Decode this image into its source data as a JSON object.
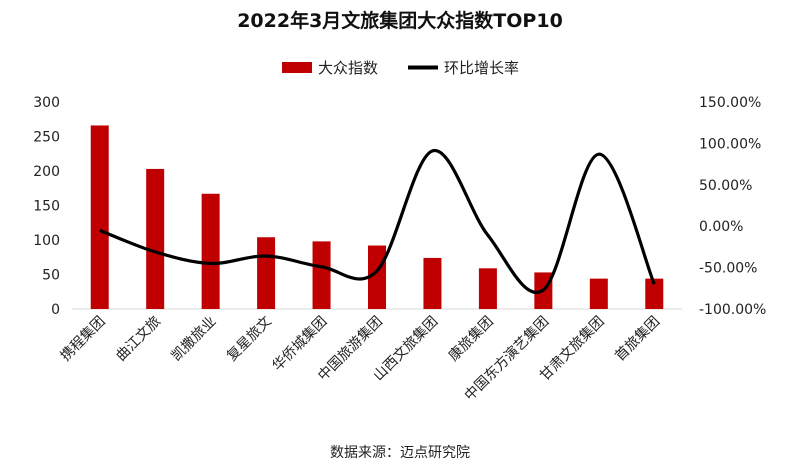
{
  "chart_data": {
    "type": "bar+line",
    "title": "2022年3月文旅集团大众指数TOP10",
    "categories": [
      "携程集团",
      "曲江文旅",
      "凯撒旅业",
      "复星旅文",
      "华侨城集团",
      "中国旅游集团",
      "山西文旅集团",
      "康旅集团",
      "中国东方演艺集团",
      "甘肃文旅集团",
      "首旅集团"
    ],
    "series": [
      {
        "name": "大众指数",
        "axis": "left",
        "kind": "bar",
        "color": "#c00000",
        "values": [
          266,
          203,
          167,
          104,
          98,
          92,
          74,
          59,
          53,
          44,
          44
        ]
      },
      {
        "name": "环比增长率",
        "axis": "right",
        "kind": "line",
        "color": "#000000",
        "unit": "%",
        "values": [
          -5,
          -31,
          -45,
          -36,
          -49,
          -54,
          91,
          -11,
          -77,
          87,
          -70
        ]
      }
    ],
    "y_left": {
      "min": 0,
      "max": 300,
      "ticks": [
        0,
        50,
        100,
        150,
        200,
        250,
        300
      ]
    },
    "y_right": {
      "min": -100,
      "max": 150,
      "ticks": [
        -100,
        -50,
        0,
        50,
        100,
        150
      ],
      "tick_labels": [
        "-100.00%",
        "-50.00%",
        "0.00%",
        "50.00%",
        "100.00%",
        "150.00%"
      ]
    },
    "legend_position": "top",
    "grid": false,
    "source": "数据来源：迈点研究院"
  }
}
